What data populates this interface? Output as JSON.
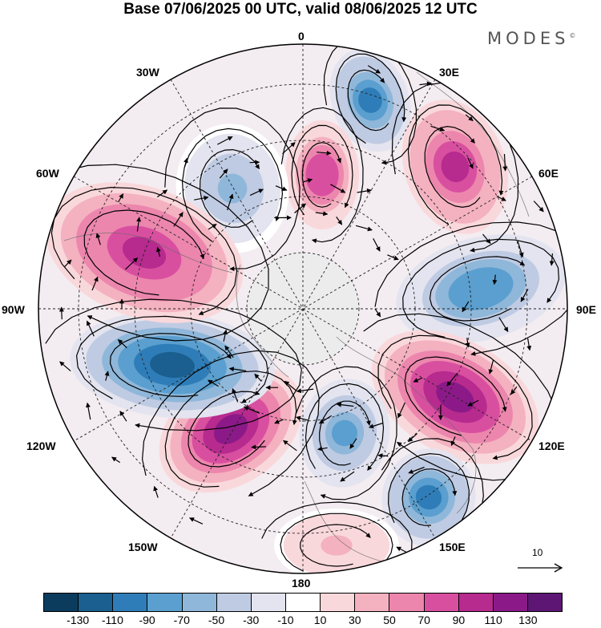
{
  "title": "Base 07/06/2025 00 UTC, valid 08/06/2025 12 UTC",
  "brand": "MODES",
  "brand_mark": "©",
  "longitude_labels": {
    "lon_0": "0",
    "lon_30e": "30E",
    "lon_60e": "60E",
    "lon_90e": "90E",
    "lon_120e": "120E",
    "lon_150e": "150E",
    "lon_180": "180",
    "lon_150w": "150W",
    "lon_120w": "120W",
    "lon_90w": "90W",
    "lon_60w": "60W",
    "lon_30w": "30W"
  },
  "reference_vector": {
    "label": "10"
  },
  "colorbar": {
    "colors": [
      "#0b3c5d",
      "#1a5f8f",
      "#2f7db8",
      "#5a9fcf",
      "#8fb7d9",
      "#bfcbe3",
      "#e3e4ef",
      "#ffffff",
      "#f9d8dc",
      "#f4b1c0",
      "#ec86ad",
      "#d94fa0",
      "#b72a8e",
      "#8b1a88",
      "#5e1675"
    ],
    "ticks": [
      "-130",
      "-110",
      "-90",
      "-70",
      "-50",
      "-30",
      "-10",
      "10",
      "30",
      "50",
      "70",
      "90",
      "110",
      "130"
    ]
  },
  "anomaly_cells": [
    {
      "id": "atlantic-low",
      "sign": "neg",
      "peak": -95
    },
    {
      "id": "scandinavia-high",
      "sign": "pos",
      "peak": 85
    },
    {
      "id": "nw-europe-low",
      "sign": "neg",
      "peak": -55
    },
    {
      "id": "west-russia-high",
      "sign": "pos",
      "peak": 95
    },
    {
      "id": "siberia-low",
      "sign": "neg",
      "peak": -85
    },
    {
      "id": "east-siberia-high",
      "sign": "pos",
      "peak": 115
    },
    {
      "id": "okhotsk-low",
      "sign": "neg",
      "peak": -95
    },
    {
      "id": "bering-low",
      "sign": "neg",
      "peak": -70
    },
    {
      "id": "alaska-high",
      "sign": "pos",
      "peak": 125
    },
    {
      "id": "canada-low",
      "sign": "neg",
      "peak": -125
    },
    {
      "id": "labrador-high",
      "sign": "pos",
      "peak": 105
    },
    {
      "id": "kamchatka-high",
      "sign": "pos",
      "peak": 35
    }
  ]
}
